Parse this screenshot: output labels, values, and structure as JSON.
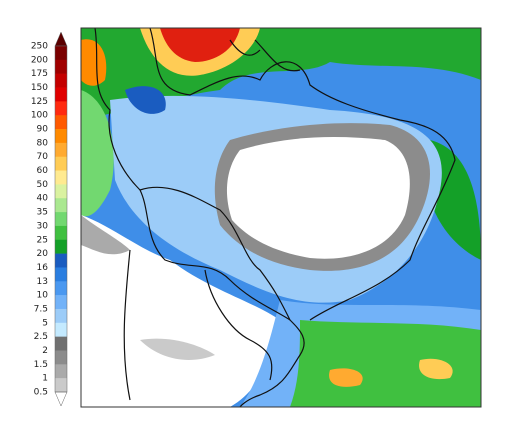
{
  "legend": {
    "labels": [
      "250",
      "200",
      "175",
      "150",
      "125",
      "100",
      "90",
      "80",
      "70",
      "60",
      "50",
      "40",
      "35",
      "30",
      "25",
      "20",
      "16",
      "13",
      "10",
      "7.5",
      "5",
      "2.5",
      "2",
      "1.5",
      "1",
      "0.5"
    ],
    "colors": [
      "#7a0000",
      "#a00000",
      "#c40000",
      "#e00000",
      "#ff2a10",
      "#ff5a00",
      "#ff8a00",
      "#ffaa30",
      "#ffcc55",
      "#ffea90",
      "#daf2a0",
      "#aae890",
      "#72d870",
      "#40c040",
      "#14a028",
      "#1a5cc0",
      "#2a7ee0",
      "#4a98f0",
      "#72b2f8",
      "#9cccf8",
      "#c4eaff",
      "#707070",
      "#8c8c8c",
      "#aaaaaa",
      "#cacaca"
    ],
    "top_color": "#5a0000",
    "bottom_color": "#ffffff"
  }
}
